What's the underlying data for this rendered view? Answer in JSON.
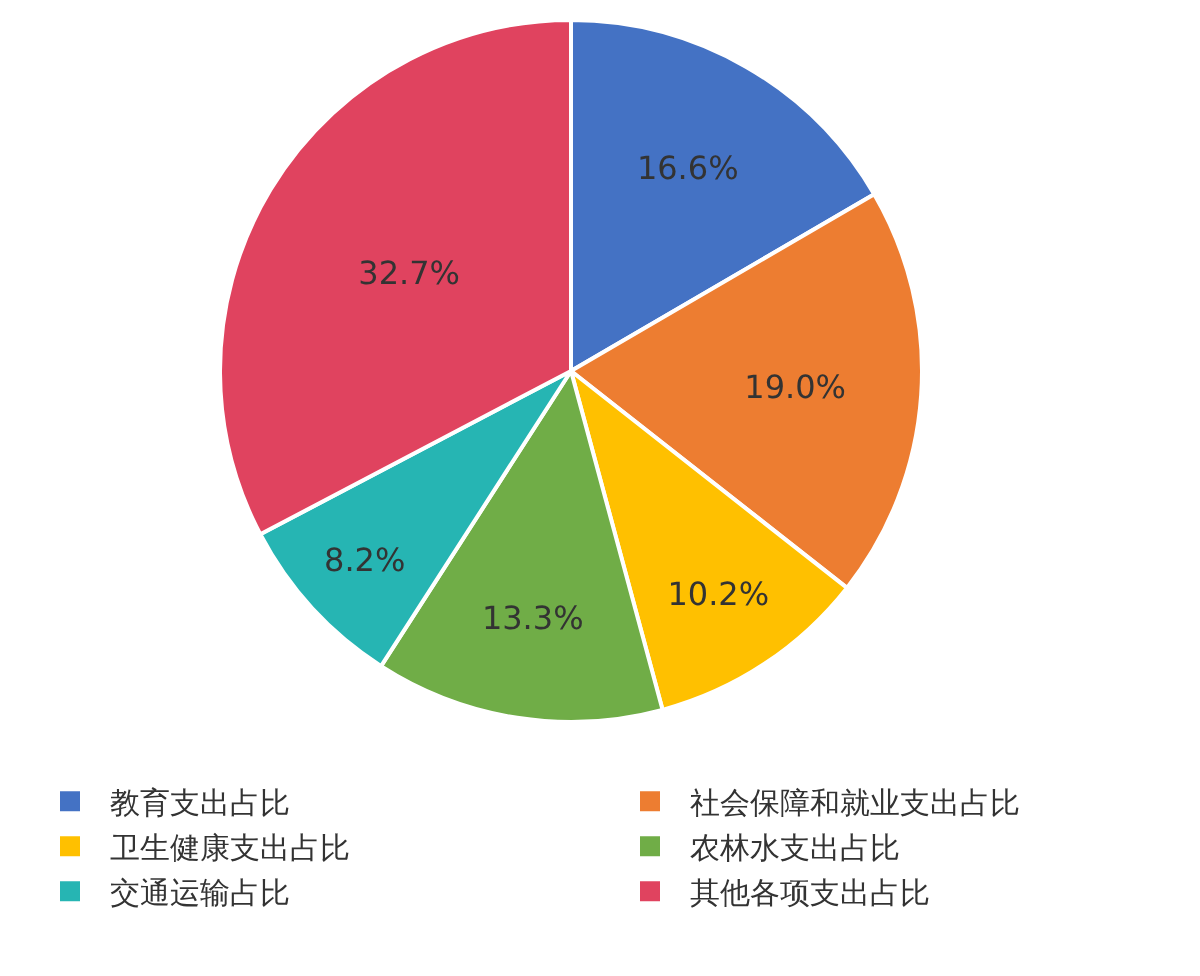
{
  "chart_data": {
    "type": "pie",
    "categories": [
      "教育支出占比",
      "社会保障和就业支出占比",
      "卫生健康支出占比",
      "农林水支出占比",
      "交通运输占比",
      "其他各项支出占比"
    ],
    "values": [
      16.6,
      19.0,
      10.2,
      13.3,
      8.2,
      32.7
    ],
    "value_labels": [
      "16.6%",
      "19.0%",
      "10.2%",
      "13.3%",
      "8.2%",
      "32.7%"
    ],
    "colors": [
      "#4472c4",
      "#ed7d31",
      "#ffc000",
      "#70ad47",
      "#26b5b3",
      "#e0435f"
    ],
    "legend": "bottom"
  }
}
